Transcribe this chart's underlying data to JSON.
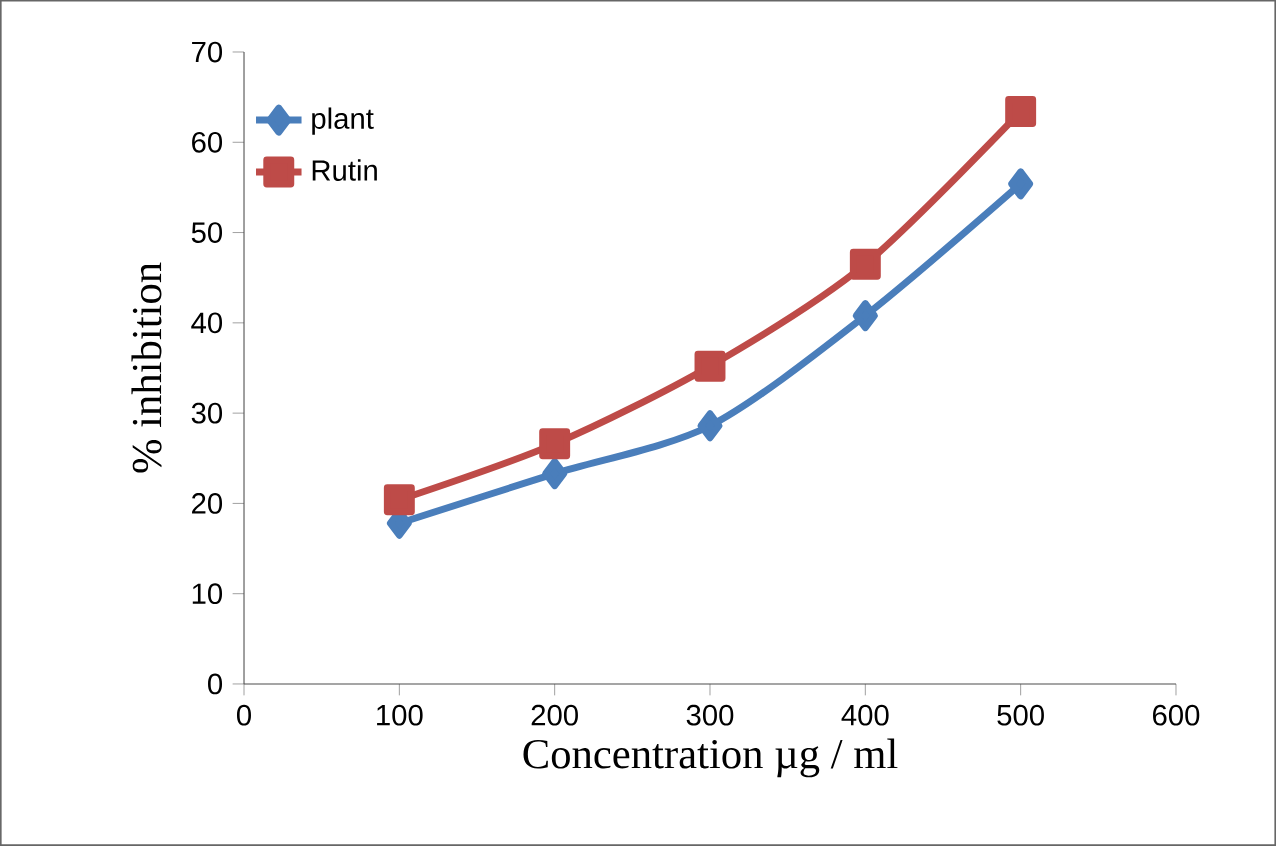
{
  "chart_data": {
    "type": "line",
    "xlabel": "Concentration µg / ml",
    "ylabel": "% inhibition",
    "x": [
      100,
      200,
      300,
      400,
      500
    ],
    "series": [
      {
        "name": "plant",
        "color": "#4a7ebb",
        "marker": "diamond",
        "values": [
          17.8,
          23.3,
          28.6,
          40.8,
          55.4
        ]
      },
      {
        "name": "Rutin",
        "color": "#be4b48",
        "marker": "square",
        "values": [
          20.4,
          26.6,
          35.2,
          46.5,
          63.4
        ]
      }
    ],
    "xlim": [
      0,
      600
    ],
    "xticks": [
      0,
      100,
      200,
      300,
      400,
      500,
      600
    ],
    "ylim": [
      0,
      70
    ],
    "yticks": [
      0,
      10,
      20,
      30,
      40,
      50,
      60,
      70
    ],
    "grid": false,
    "legend": "top left"
  }
}
